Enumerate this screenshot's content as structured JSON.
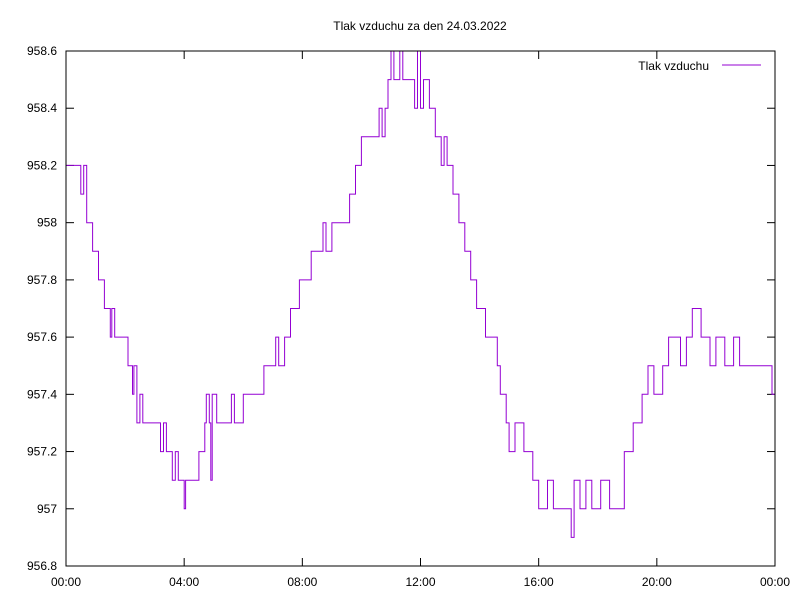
{
  "chart_data": {
    "type": "line",
    "title": "Tlak vzduchu za den 24.03.2022",
    "xlabel": "",
    "ylabel": "",
    "x_ticks": [
      "00:00",
      "04:00",
      "08:00",
      "12:00",
      "16:00",
      "20:00",
      "00:00"
    ],
    "xlim_hours": [
      0,
      24
    ],
    "y_ticks": [
      "956.8",
      "957",
      "957.2",
      "957.4",
      "957.6",
      "957.8",
      "958",
      "958.2",
      "958.4",
      "958.6"
    ],
    "ylim": [
      956.8,
      958.6
    ],
    "grid": false,
    "legend_position": "top-right",
    "series": [
      {
        "name": "Tlak vzduchu",
        "color": "#9400d3",
        "step": true,
        "points": [
          [
            0.0,
            958.2
          ],
          [
            0.5,
            958.1
          ],
          [
            0.6,
            958.2
          ],
          [
            0.7,
            958.0
          ],
          [
            0.9,
            957.9
          ],
          [
            1.1,
            957.8
          ],
          [
            1.3,
            957.7
          ],
          [
            1.5,
            957.6
          ],
          [
            1.55,
            957.7
          ],
          [
            1.65,
            957.6
          ],
          [
            2.1,
            957.5
          ],
          [
            2.25,
            957.4
          ],
          [
            2.3,
            957.5
          ],
          [
            2.4,
            957.3
          ],
          [
            2.5,
            957.4
          ],
          [
            2.6,
            957.3
          ],
          [
            3.2,
            957.2
          ],
          [
            3.3,
            957.3
          ],
          [
            3.4,
            957.2
          ],
          [
            3.6,
            957.1
          ],
          [
            3.7,
            957.2
          ],
          [
            3.8,
            957.1
          ],
          [
            4.0,
            957.0
          ],
          [
            4.05,
            957.1
          ],
          [
            4.5,
            957.2
          ],
          [
            4.7,
            957.3
          ],
          [
            4.75,
            957.4
          ],
          [
            4.85,
            957.3
          ],
          [
            4.9,
            957.1
          ],
          [
            4.95,
            957.4
          ],
          [
            5.1,
            957.3
          ],
          [
            5.6,
            957.4
          ],
          [
            5.7,
            957.3
          ],
          [
            6.0,
            957.4
          ],
          [
            6.7,
            957.5
          ],
          [
            7.1,
            957.6
          ],
          [
            7.2,
            957.5
          ],
          [
            7.4,
            957.6
          ],
          [
            7.6,
            957.7
          ],
          [
            7.9,
            957.8
          ],
          [
            8.3,
            957.9
          ],
          [
            8.7,
            958.0
          ],
          [
            8.8,
            957.9
          ],
          [
            9.0,
            958.0
          ],
          [
            9.6,
            958.1
          ],
          [
            9.8,
            958.2
          ],
          [
            10.0,
            958.3
          ],
          [
            10.6,
            958.4
          ],
          [
            10.7,
            958.3
          ],
          [
            10.8,
            958.4
          ],
          [
            10.9,
            958.5
          ],
          [
            11.0,
            958.6
          ],
          [
            11.1,
            958.5
          ],
          [
            11.3,
            958.6
          ],
          [
            11.4,
            958.5
          ],
          [
            11.8,
            958.4
          ],
          [
            11.9,
            958.6
          ],
          [
            12.0,
            958.4
          ],
          [
            12.1,
            958.5
          ],
          [
            12.3,
            958.4
          ],
          [
            12.5,
            958.3
          ],
          [
            12.7,
            958.2
          ],
          [
            12.8,
            958.3
          ],
          [
            12.9,
            958.2
          ],
          [
            13.1,
            958.1
          ],
          [
            13.3,
            958.0
          ],
          [
            13.5,
            957.9
          ],
          [
            13.7,
            957.8
          ],
          [
            13.9,
            957.7
          ],
          [
            14.2,
            957.6
          ],
          [
            14.6,
            957.5
          ],
          [
            14.7,
            957.4
          ],
          [
            14.9,
            957.3
          ],
          [
            15.0,
            957.2
          ],
          [
            15.2,
            957.3
          ],
          [
            15.5,
            957.2
          ],
          [
            15.8,
            957.1
          ],
          [
            16.0,
            957.0
          ],
          [
            16.3,
            957.1
          ],
          [
            16.5,
            957.0
          ],
          [
            17.1,
            956.9
          ],
          [
            17.2,
            957.1
          ],
          [
            17.4,
            957.0
          ],
          [
            17.6,
            957.1
          ],
          [
            17.8,
            957.0
          ],
          [
            18.1,
            957.1
          ],
          [
            18.4,
            957.0
          ],
          [
            18.9,
            957.2
          ],
          [
            19.2,
            957.3
          ],
          [
            19.5,
            957.4
          ],
          [
            19.7,
            957.5
          ],
          [
            19.9,
            957.4
          ],
          [
            20.2,
            957.5
          ],
          [
            20.4,
            957.6
          ],
          [
            20.8,
            957.5
          ],
          [
            21.0,
            957.6
          ],
          [
            21.2,
            957.7
          ],
          [
            21.5,
            957.6
          ],
          [
            21.8,
            957.5
          ],
          [
            22.0,
            957.6
          ],
          [
            22.3,
            957.5
          ],
          [
            22.6,
            957.6
          ],
          [
            22.8,
            957.5
          ],
          [
            23.9,
            957.4
          ],
          [
            24.0,
            957.5
          ]
        ]
      }
    ]
  }
}
